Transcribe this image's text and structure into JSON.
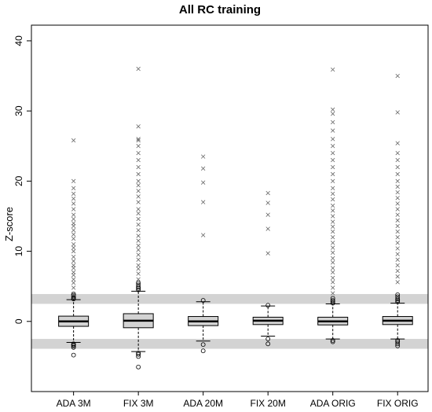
{
  "chart_data": {
    "type": "box",
    "title": "All RC training",
    "xlabel": "",
    "ylabel": "Z-score",
    "ylim": [
      -10,
      41
    ],
    "yticks": [
      0,
      10,
      20,
      30,
      40
    ],
    "grid": false,
    "bands": [
      {
        "from": 2.5,
        "to": 3.9
      },
      {
        "from": -3.9,
        "to": -2.5
      }
    ],
    "band_color": "#d3d3d3",
    "box_color": "#d3d3d3",
    "categories": [
      "ADA 3M",
      "FIX 3M",
      "ADA 20M",
      "FIX 20M",
      "ADA ORIG",
      "FIX ORIG"
    ],
    "boxes": [
      {
        "q1": -0.7,
        "median": 0.0,
        "q3": 0.75,
        "whisker_low": -3.0,
        "whisker_high": 3.1,
        "outliers_circle": [
          3.2,
          3.3,
          3.5,
          3.7,
          3.9,
          -3.2,
          -3.35,
          -3.5,
          -3.7,
          -4.8
        ],
        "outliers_cross": [
          3.9,
          4.8,
          5.5,
          6.0,
          6.6,
          7.0,
          7.6,
          8.0,
          8.6,
          9.2,
          10.0,
          10.5,
          11.0,
          11.8,
          12.4,
          13.0,
          13.6,
          14.0,
          14.6,
          15.2,
          16.0,
          16.8,
          17.5,
          18.2,
          19.0,
          20.0,
          25.8
        ]
      },
      {
        "q1": -0.9,
        "median": 0.1,
        "q3": 1.1,
        "whisker_low": -4.3,
        "whisker_high": 4.3,
        "outliers_circle": [
          4.5,
          4.7,
          4.9,
          5.2,
          5.5,
          -4.5,
          -4.7,
          -5.0,
          -6.5
        ],
        "outliers_cross": [
          5.4,
          6.0,
          6.8,
          7.5,
          8.0,
          8.8,
          9.5,
          10.2,
          10.8,
          11.5,
          12.2,
          13.0,
          13.8,
          14.6,
          15.4,
          16.0,
          17.0,
          17.8,
          18.6,
          19.4,
          20.0,
          21.0,
          22.0,
          23.0,
          24.0,
          25.0,
          25.8,
          26.0,
          27.8,
          36.0
        ]
      },
      {
        "q1": -0.6,
        "median": 0.0,
        "q3": 0.7,
        "whisker_low": -2.8,
        "whisker_high": 2.8,
        "outliers_circle": [
          3.0,
          -3.3,
          -4.2
        ],
        "outliers_cross": [
          12.3,
          17.0,
          19.8,
          21.8,
          23.5
        ]
      },
      {
        "q1": -0.45,
        "median": 0.1,
        "q3": 0.6,
        "whisker_low": -2.1,
        "whisker_high": 2.2,
        "outliers_circle": [
          2.3,
          -2.5,
          -3.2
        ],
        "outliers_cross": [
          9.7,
          13.2,
          15.2,
          16.9,
          18.3
        ]
      },
      {
        "q1": -0.5,
        "median": 0.0,
        "q3": 0.6,
        "whisker_low": -2.5,
        "whisker_high": 2.5,
        "outliers_circle": [
          2.6,
          2.8,
          3.0,
          3.3,
          -2.7,
          -2.9
        ],
        "outliers_cross": [
          4.0,
          4.8,
          5.6,
          6.2,
          7.0,
          7.6,
          8.4,
          9.0,
          9.8,
          10.5,
          11.2,
          12.0,
          12.8,
          13.5,
          14.2,
          15.0,
          15.8,
          16.5,
          17.4,
          18.2,
          19.0,
          20.0,
          21.0,
          22.0,
          23.0,
          24.0,
          25.0,
          26.0,
          27.2,
          28.4,
          29.6,
          30.2,
          35.9
        ]
      },
      {
        "q1": -0.45,
        "median": 0.1,
        "q3": 0.7,
        "whisker_low": -2.5,
        "whisker_high": 2.6,
        "outliers_circle": [
          2.8,
          3.0,
          3.2,
          3.5,
          3.8,
          -2.7,
          -2.9,
          -3.2,
          -3.5
        ],
        "outliers_cross": [
          5.6,
          6.4,
          7.2,
          8.0,
          8.8,
          9.6,
          10.4,
          11.2,
          12.0,
          12.8,
          13.6,
          14.4,
          15.2,
          16.0,
          16.8,
          17.6,
          18.4,
          19.2,
          20.0,
          21.0,
          22.0,
          23.0,
          24.0,
          25.4,
          29.8,
          35.0
        ]
      }
    ]
  }
}
